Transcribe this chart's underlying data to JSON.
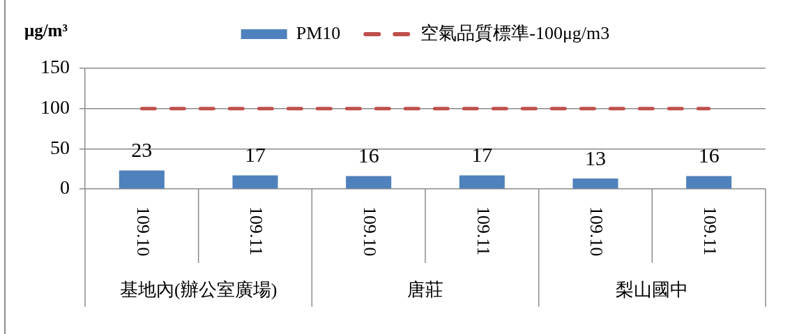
{
  "chart_data": {
    "type": "bar",
    "ylabel": "μg/m³",
    "categories": [
      "109.10",
      "109.11",
      "109.10",
      "109.11",
      "109.10",
      "109.11"
    ],
    "series": [
      {
        "name": "PM10",
        "color": "#4f81bd",
        "values": [
          23,
          17,
          16,
          17,
          13,
          16
        ],
        "value_labels": [
          "23",
          "17",
          "16",
          "17",
          "13",
          "16"
        ]
      },
      {
        "name": "空氣品質標準-100μg/m3",
        "type": "line",
        "color": "#c0504d",
        "values": [
          100,
          100,
          100,
          100,
          100,
          100
        ],
        "line_style": "dashed",
        "marker": "none"
      }
    ],
    "ylim": [
      0,
      150
    ],
    "yticks": [
      0,
      50,
      100,
      150
    ],
    "grid": "y",
    "legend": "top",
    "annotations": [
      "基地內(辦公室廣場)",
      "唐莊",
      "梨山國中"
    ]
  }
}
